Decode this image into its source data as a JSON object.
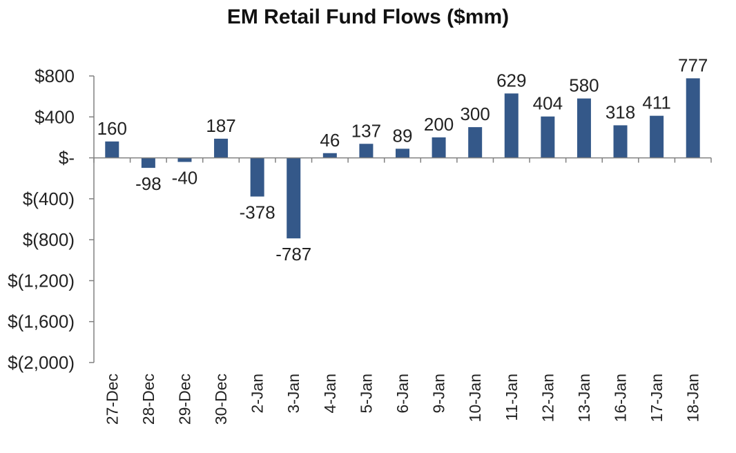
{
  "chart_data": {
    "type": "bar",
    "title": "EM Retail Fund Flows ($mm)",
    "xlabel": "",
    "ylabel": "",
    "categories": [
      "27-Dec",
      "28-Dec",
      "29-Dec",
      "30-Dec",
      "2-Jan",
      "3-Jan",
      "4-Jan",
      "5-Jan",
      "6-Jan",
      "9-Jan",
      "10-Jan",
      "11-Jan",
      "12-Jan",
      "13-Jan",
      "16-Jan",
      "17-Jan",
      "18-Jan"
    ],
    "values": [
      160,
      -98,
      -40,
      187,
      -378,
      -787,
      46,
      137,
      89,
      200,
      300,
      629,
      404,
      580,
      318,
      411,
      777
    ],
    "data_labels": [
      "160",
      "-98",
      "-40",
      "187",
      "-378",
      "-787",
      "46",
      "137",
      "89",
      "200",
      "300",
      "629",
      "404",
      "580",
      "318",
      "411",
      "777"
    ],
    "ylim": [
      -2000,
      800
    ],
    "yticks": [
      800,
      400,
      0,
      -400,
      -800,
      -1200,
      -1600,
      -2000
    ],
    "ytick_labels": [
      "$800",
      "$400",
      "$-",
      "$(400)",
      "$(800)",
      "$(1,200)",
      "$(1,600)",
      "$(2,000)"
    ],
    "bar_color": "#345889",
    "axis_color": "#808080",
    "grid": false,
    "legend": "none"
  }
}
